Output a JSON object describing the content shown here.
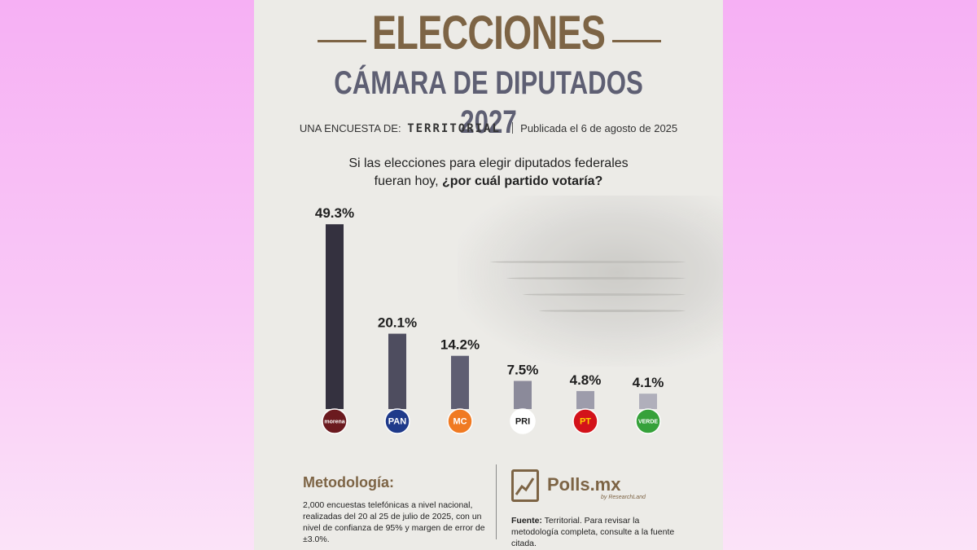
{
  "header": {
    "title": "ELECCIONES",
    "subtitle": "CÁMARA DE DIPUTADOS 2027",
    "source_prefix": "UNA ENCUESTA DE:",
    "source_brand": "TERRITORIAL",
    "published": "Publicada el 6 de agosto de 2025"
  },
  "question": {
    "line1": "Si las elecciones para elegir diputados federales",
    "line2_plain": "fueran hoy, ",
    "line2_bold": "¿por cuál partido votaría?"
  },
  "chart_data": {
    "type": "bar",
    "categories": [
      "Morena",
      "PAN",
      "Movimiento Ciudadano",
      "PRI",
      "PT",
      "Verde"
    ],
    "values": [
      49.3,
      20.1,
      14.2,
      7.5,
      4.8,
      4.1
    ],
    "data_labels": [
      "49.3%",
      "20.1%",
      "14.2%",
      "7.5%",
      "4.8%",
      "4.1%"
    ],
    "unit": "%",
    "ylim": [
      0,
      50
    ],
    "grid": false,
    "bar_colors": [
      "#34313f",
      "#4e4d5f",
      "#5f5e72",
      "#8b8a9a",
      "#9d9cab",
      "#b0afbb"
    ],
    "party_logos": [
      {
        "text": "morena",
        "color": "#6b1a1f",
        "text_color": "#ffffff"
      },
      {
        "text": "PAN",
        "color": "#1f3a8a",
        "text_color": "#ffffff"
      },
      {
        "text": "MC",
        "color": "#f07a22",
        "text_color": "#ffffff"
      },
      {
        "text": "PRI",
        "color": "#ffffff",
        "text_color": "#1a1a1a"
      },
      {
        "text": "PT",
        "color": "#d3121a",
        "text_color": "#ffd200"
      },
      {
        "text": "VERDE",
        "color": "#36a13a",
        "text_color": "#ffffff"
      }
    ]
  },
  "methodology": {
    "title": "Metodología:",
    "text": "2,000 encuestas telefónicas a nivel nacional, realizadas del 20 al 25 de julio de 2025, con un nivel de confianza de 95% y margen de error de ±3.0%."
  },
  "footer": {
    "logo_name": "Polls.mx",
    "logo_tag": "by ResearchLand",
    "fuente_label": "Fuente:",
    "fuente_text": " Territorial. Para revisar la metodología completa, consulte a la fuente citada."
  },
  "colors": {
    "brand_brown": "#7d6445",
    "subtitle_slate": "#5e5f73",
    "card_bg": "#ecebe7"
  }
}
